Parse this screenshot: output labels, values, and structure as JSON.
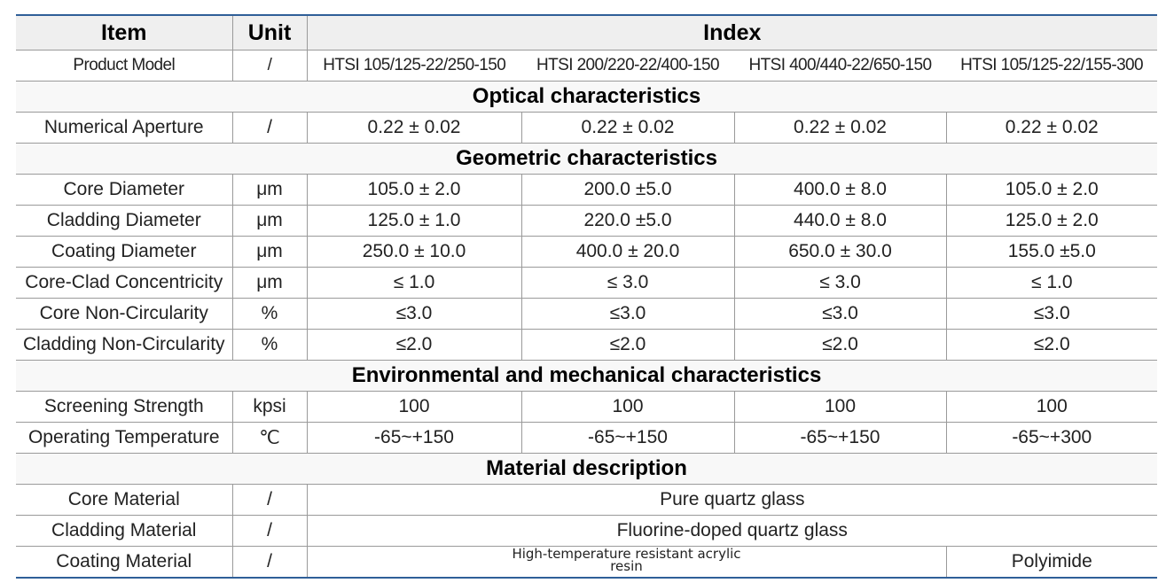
{
  "table": {
    "header": {
      "item": "Item",
      "unit": "Unit",
      "index": "Index"
    },
    "model_row": {
      "item": "Product Model",
      "unit": "/",
      "values": [
        "HTSI 105/125-22/250-150",
        "HTSI 200/220-22/400-150",
        "HTSI 400/440-22/650-150",
        "HTSI 105/125-22/155-300"
      ]
    },
    "sections": [
      {
        "title": "Optical characteristics",
        "rows": [
          {
            "item": "Numerical Aperture",
            "unit": "/",
            "values": [
              "0.22 ± 0.02",
              "0.22 ± 0.02",
              "0.22 ± 0.02",
              "0.22 ± 0.02"
            ]
          }
        ]
      },
      {
        "title": "Geometric characteristics",
        "rows": [
          {
            "item": "Core Diameter",
            "unit": "μm",
            "values": [
              "105.0 ± 2.0",
              "200.0 ±5.0",
              "400.0 ± 8.0",
              "105.0 ± 2.0"
            ]
          },
          {
            "item": "Cladding Diameter",
            "unit": "μm",
            "values": [
              "125.0 ± 1.0",
              "220.0 ±5.0",
              "440.0 ± 8.0",
              "125.0 ± 2.0"
            ]
          },
          {
            "item": "Coating Diameter",
            "unit": "μm",
            "values": [
              "250.0 ± 10.0",
              "400.0 ± 20.0",
              "650.0 ± 30.0",
              "155.0 ±5.0"
            ]
          },
          {
            "item": "Core-Clad Concentricity",
            "unit": "μm",
            "values": [
              "≤ 1.0",
              "≤ 3.0",
              "≤ 3.0",
              "≤ 1.0"
            ]
          },
          {
            "item": "Core Non-Circularity",
            "unit": "%",
            "values": [
              "≤3.0",
              "≤3.0",
              "≤3.0",
              "≤3.0"
            ]
          },
          {
            "item": "Cladding Non-Circularity",
            "unit": "%",
            "values": [
              "≤2.0",
              "≤2.0",
              "≤2.0",
              "≤2.0"
            ]
          }
        ]
      },
      {
        "title": "Environmental and mechanical characteristics",
        "rows": [
          {
            "item": "Screening Strength",
            "unit": "kpsi",
            "values": [
              "100",
              "100",
              "100",
              "100"
            ]
          },
          {
            "item": "Operating Temperature",
            "unit": "℃",
            "values": [
              "-65~+150",
              "-65~+150",
              "-65~+150",
              "-65~+300"
            ]
          }
        ]
      },
      {
        "title": "Material description",
        "rows": [
          {
            "item": "Core Material",
            "unit": "/",
            "values": [
              "Pure quartz glass"
            ]
          },
          {
            "item": "Cladding Material",
            "unit": "/",
            "values": [
              "Fluorine-doped quartz glass"
            ]
          },
          {
            "item": "Coating Material",
            "unit": "/",
            "values": [
              "High-temperature resistant acrylic resin",
              "Polyimide"
            ]
          }
        ]
      }
    ]
  }
}
